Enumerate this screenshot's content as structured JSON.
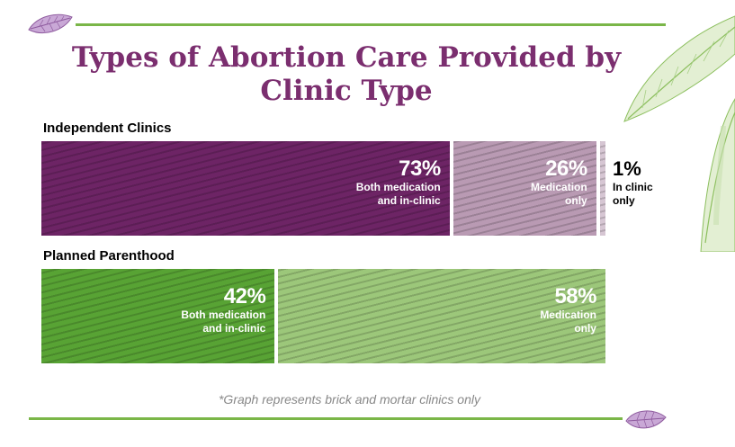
{
  "title": "Types of Abortion Care Provided by Clinic Type",
  "footnote": "*Graph represents brick and mortar clinics only",
  "colors": {
    "title": "#7b2e6f",
    "rule": "#7ab648",
    "independent_dark": "#6d2465",
    "independent_light": "#b99ab3",
    "pp_dark": "#58a334",
    "pp_light": "#9cc77a",
    "footnote": "#888888"
  },
  "chart_data": {
    "type": "bar",
    "orientation": "horizontal-stacked-100",
    "title": "Types of Abortion Care Provided by Clinic Type",
    "rows": [
      {
        "name": "Independent Clinics",
        "segments": [
          {
            "pct_label": "73%",
            "value": 73,
            "desc": [
              "Both medication",
              "and in-clinic"
            ],
            "color": "#6d2465"
          },
          {
            "pct_label": "26%",
            "value": 26,
            "desc": [
              "Medication",
              "only"
            ],
            "color": "#b99ab3"
          },
          {
            "pct_label": "1%",
            "value": 1,
            "desc": [
              "In clinic",
              "only"
            ],
            "color": "#d6c6d3"
          }
        ]
      },
      {
        "name": "Planned Parenthood",
        "segments": [
          {
            "pct_label": "42%",
            "value": 42,
            "desc": [
              "Both medication",
              "and in-clinic"
            ],
            "color": "#58a334"
          },
          {
            "pct_label": "58%",
            "value": 58,
            "desc": [
              "Medication",
              "only"
            ],
            "color": "#9cc77a"
          }
        ]
      }
    ],
    "footnote": "*Graph represents brick and mortar clinics only"
  }
}
